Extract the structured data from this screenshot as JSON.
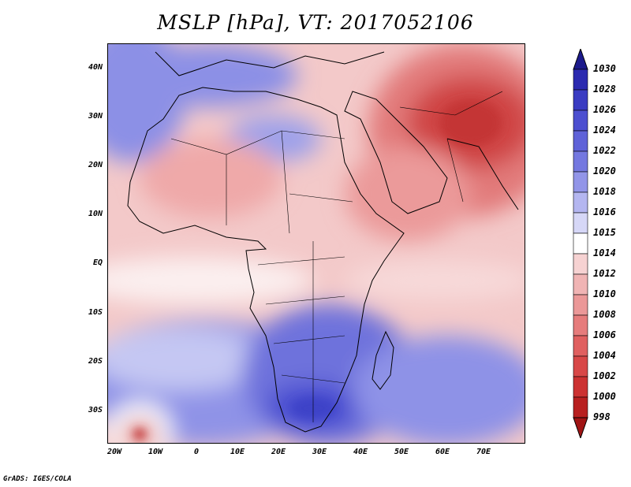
{
  "title": "MSLP [hPa], VT: 2017052106",
  "credit": "GrADS: IGES/COLA",
  "lat_labels": [
    "40N",
    "30N",
    "20N",
    "10N",
    "EQ",
    "10S",
    "20S",
    "30S"
  ],
  "lon_labels": [
    "20W",
    "10W",
    "0",
    "10E",
    "20E",
    "30E",
    "40E",
    "50E",
    "60E",
    "70E"
  ],
  "colorbar": {
    "labels": [
      "1030",
      "1028",
      "1026",
      "1024",
      "1022",
      "1020",
      "1018",
      "1016",
      "1015",
      "1014",
      "1012",
      "1010",
      "1008",
      "1006",
      "1004",
      "1002",
      "1000",
      "998"
    ],
    "colors": [
      "#1c1a8c",
      "#2b2ab0",
      "#3a3cc2",
      "#4c4fd0",
      "#5f62d8",
      "#7478e0",
      "#9295e8",
      "#b4b6f0",
      "#d6d7f7",
      "#ffffff",
      "#f6d2d2",
      "#f0b4b4",
      "#eb9898",
      "#e67c7c",
      "#e06060",
      "#d84848",
      "#cc3232",
      "#b82020",
      "#a01414"
    ]
  },
  "map_colors": {
    "ocean_mid": "#f6d6d6",
    "low": "#e07070",
    "deep_low": "#c83838",
    "high": "#7a7ee0",
    "strong_high": "#4b4fd0",
    "border": "#000000"
  }
}
